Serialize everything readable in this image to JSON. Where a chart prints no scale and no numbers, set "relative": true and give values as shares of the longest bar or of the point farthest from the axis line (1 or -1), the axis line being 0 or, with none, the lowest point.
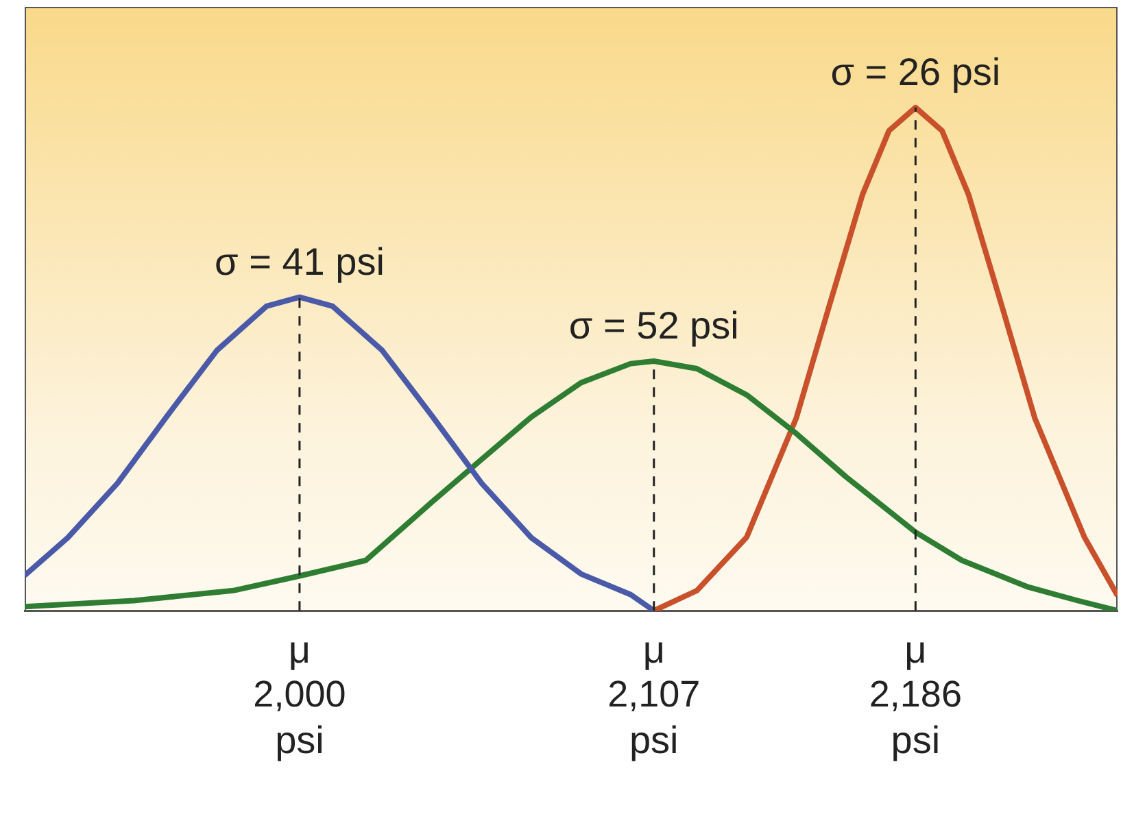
{
  "chart_data": {
    "type": "line",
    "relative": true,
    "grid": false,
    "legend": false,
    "marker": "none",
    "line_style": "solid",
    "xlim": [
      1917,
      2247
    ],
    "xticks": [
      {
        "value": 2000,
        "label": "2,000"
      },
      {
        "value": 2107,
        "label": "2,107"
      },
      {
        "value": 2186,
        "label": "2,186"
      }
    ],
    "tick_labels": "x",
    "series": [
      {
        "color": "#4a5aa8",
        "x": [
          1917,
          1930,
          1945,
          1960,
          1975,
          1990,
          2000,
          2010,
          2025,
          2040,
          2055,
          2070,
          2085,
          2100,
          2107
        ],
        "values": [
          0.07,
          0.145,
          0.253,
          0.387,
          0.517,
          0.605,
          0.623,
          0.605,
          0.517,
          0.387,
          0.253,
          0.145,
          0.073,
          0.032,
          0
        ]
      },
      {
        "color": "#2e7d32",
        "x": [
          1917,
          1950,
          1980,
          2000,
          2020,
          2040,
          2055,
          2070,
          2085,
          2100,
          2107,
          2120,
          2135,
          2150,
          2165,
          2186,
          2200,
          2220,
          2235,
          2247
        ],
        "values": [
          0.008,
          0.02,
          0.04,
          0.069,
          0.1,
          0.216,
          0.301,
          0.385,
          0.453,
          0.491,
          0.496,
          0.481,
          0.429,
          0.352,
          0.266,
          0.156,
          0.1,
          0.047,
          0.02,
          0
        ]
      },
      {
        "color": "#c8502a",
        "x": [
          2107,
          2120,
          2135,
          2150,
          2160,
          2170,
          2178,
          2186,
          2194,
          2202,
          2212,
          2222,
          2237,
          2247
        ],
        "values": [
          0,
          0.04,
          0.146,
          0.383,
          0.607,
          0.827,
          0.954,
          1,
          0.954,
          0.827,
          0.607,
          0.383,
          0.146,
          0.03
        ]
      }
    ],
    "ref_lines": [
      {
        "axis": "x",
        "value": 2000,
        "color": "#222222",
        "line_style": "dashed"
      },
      {
        "axis": "x",
        "value": 2107,
        "color": "#222222",
        "line_style": "dashed"
      },
      {
        "axis": "x",
        "value": 2186,
        "color": "#222222",
        "line_style": "dashed"
      }
    ],
    "annotations": [
      {
        "text": "σ = 41 psi",
        "x": 2000,
        "y": 0.623
      },
      {
        "text": "σ = 52 psi",
        "x": 2107,
        "y": 0.496
      },
      {
        "text": "σ = 26 psi",
        "x": 2186,
        "y": 1
      },
      "μ",
      "μ",
      "μ",
      "psi",
      "psi",
      "psi"
    ]
  }
}
